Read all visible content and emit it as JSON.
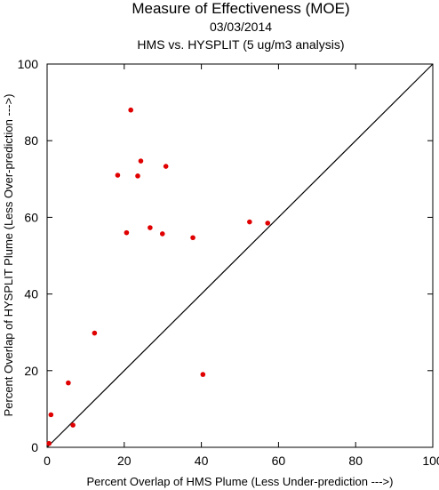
{
  "chart_data": {
    "type": "scatter",
    "title": "Measure of Effectiveness (MOE)",
    "subtitle": "03/03/2014",
    "subtitle2": "HMS vs. HYSPLIT  (5 ug/m3 analysis)",
    "xlabel": "Percent Overlap of HMS Plume (Less Under-prediction --->)",
    "ylabel": "Percent Overlap of HYSPLIT Plume (Less Over-prediction --->)",
    "xlim": [
      0,
      100
    ],
    "ylim": [
      0,
      100
    ],
    "xticks": [
      "0",
      "20",
      "40",
      "60",
      "80",
      "100"
    ],
    "yticks": [
      "0",
      "20",
      "40",
      "60",
      "80",
      "100"
    ],
    "grid": false,
    "reference_line": "1:1 diagonal",
    "point_color": "#e00000",
    "points": [
      {
        "x": 0.5,
        "y": 1.0
      },
      {
        "x": 1.0,
        "y": 8.5
      },
      {
        "x": 5.5,
        "y": 16.8
      },
      {
        "x": 6.7,
        "y": 5.8
      },
      {
        "x": 12.3,
        "y": 29.8
      },
      {
        "x": 18.3,
        "y": 71.0
      },
      {
        "x": 20.6,
        "y": 56.0
      },
      {
        "x": 21.7,
        "y": 88.0
      },
      {
        "x": 23.5,
        "y": 70.8
      },
      {
        "x": 24.3,
        "y": 74.7
      },
      {
        "x": 26.7,
        "y": 57.3
      },
      {
        "x": 29.9,
        "y": 55.7
      },
      {
        "x": 30.8,
        "y": 73.3
      },
      {
        "x": 37.8,
        "y": 54.7
      },
      {
        "x": 40.4,
        "y": 19.0
      },
      {
        "x": 52.5,
        "y": 58.8
      },
      {
        "x": 57.2,
        "y": 58.5
      }
    ]
  }
}
